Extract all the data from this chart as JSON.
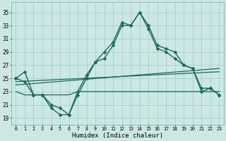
{
  "xlabel": "Humidex (Indice chaleur)",
  "bg_color": "#cce8e4",
  "grid_color": "#99cccc",
  "line_color": "#1a6b5a",
  "x_ticks": [
    0,
    1,
    2,
    3,
    4,
    5,
    6,
    7,
    8,
    9,
    10,
    11,
    12,
    13,
    14,
    15,
    16,
    17,
    18,
    19,
    20,
    21,
    22,
    23
  ],
  "y_ticks": [
    19,
    21,
    23,
    25,
    27,
    29,
    31,
    33,
    35
  ],
  "ylim": [
    18.0,
    36.5
  ],
  "xlim": [
    -0.5,
    23.5
  ],
  "series": [
    {
      "x": [
        0,
        1,
        2,
        3,
        4,
        5,
        6,
        7,
        8,
        9,
        10,
        11,
        12,
        13,
        14,
        15,
        16,
        17,
        18,
        19,
        20,
        21,
        22,
        23
      ],
      "y": [
        25,
        26,
        22.5,
        22.5,
        20.5,
        19.5,
        19.5,
        23,
        25.5,
        27.5,
        28,
        30,
        33,
        33,
        35,
        33,
        30,
        29.5,
        29,
        27,
        26.5,
        23.5,
        23.5,
        22.5
      ],
      "marker": "D",
      "markersize": 2.5,
      "linewidth": 1.0
    },
    {
      "x": [
        0,
        1,
        2,
        3,
        4,
        5,
        6,
        7,
        8,
        9,
        10,
        11,
        12,
        13,
        14,
        15,
        16,
        17,
        18,
        19,
        20,
        21,
        22,
        23
      ],
      "y": [
        23.0,
        22.5,
        22.5,
        22.5,
        22.5,
        22.5,
        22.5,
        23.0,
        23.0,
        23.0,
        23.0,
        23.0,
        23.0,
        23.0,
        23.0,
        23.0,
        23.0,
        23.0,
        23.0,
        23.0,
        23.0,
        23.0,
        23.0,
        23.0
      ],
      "marker": null,
      "markersize": 0,
      "linewidth": 0.9
    },
    {
      "x": [
        0,
        23
      ],
      "y": [
        24.0,
        26.5
      ],
      "marker": null,
      "markersize": 0,
      "linewidth": 0.9
    },
    {
      "x": [
        0,
        23
      ],
      "y": [
        24.5,
        26.0
      ],
      "marker": null,
      "markersize": 0,
      "linewidth": 0.9
    },
    {
      "x": [
        0,
        1,
        2,
        3,
        4,
        5,
        6,
        7,
        8,
        9,
        10,
        11,
        12,
        13,
        14,
        15,
        16,
        17,
        18,
        19,
        20,
        21,
        22,
        23
      ],
      "y": [
        25,
        24.5,
        22.5,
        22.5,
        21.0,
        20.5,
        19.5,
        22.5,
        25,
        27.5,
        29,
        30.5,
        33.5,
        33,
        35,
        32.5,
        29.5,
        29.0,
        28.0,
        27.0,
        26.5,
        23.0,
        23.5,
        22.5
      ],
      "marker": "D",
      "markersize": 2.5,
      "linewidth": 1.0
    }
  ]
}
